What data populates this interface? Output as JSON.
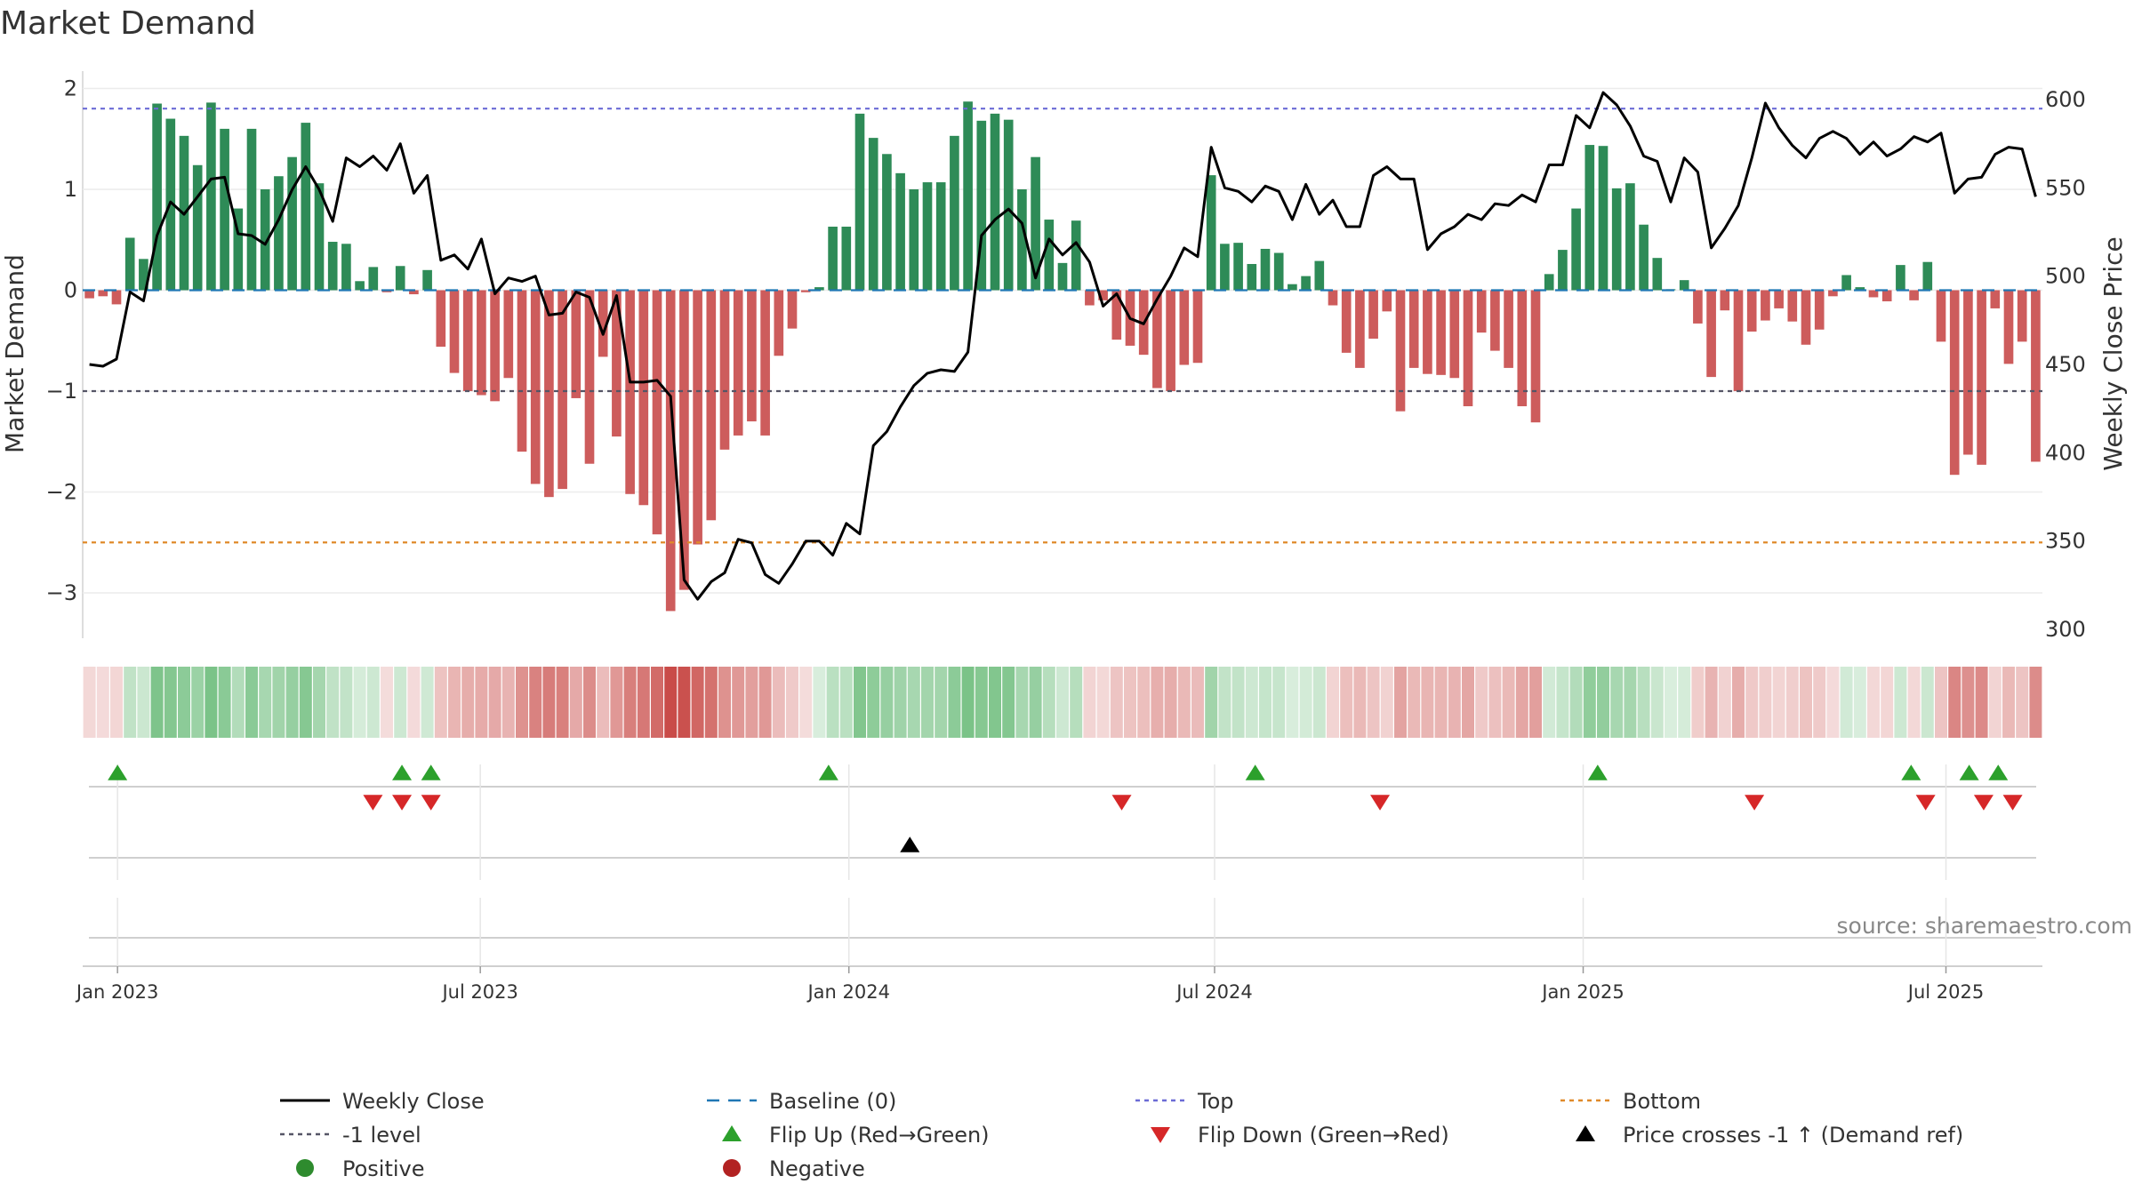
{
  "chart_data": {
    "type": "bar+line",
    "title": "Market Demand",
    "ylabel_left": "Market Demand",
    "ylabel_right": "Weekly Close Price",
    "ylim_left": [
      -3.5,
      2.05
    ],
    "ylim_right": [
      300,
      600
    ],
    "yticks_left": [
      "2",
      "1",
      "0",
      "−1",
      "−2",
      "−3"
    ],
    "ytick_values_left": [
      2,
      1,
      0,
      -1,
      -2,
      -3
    ],
    "yticks_right": [
      "600",
      "550",
      "500",
      "450",
      "400",
      "350",
      "300"
    ],
    "ytick_values_right": [
      600,
      550,
      500,
      450,
      400,
      350,
      300
    ],
    "xticks": [
      "Jan 2023",
      "Jul 2023",
      "Jan 2024",
      "Jul 2024",
      "Jan 2025",
      "Jul 2025"
    ],
    "xtick_week_index": [
      1.2,
      13.7,
      26.4,
      39.0,
      51.7,
      64.2
    ],
    "source_text": "source: sharemaestro.com",
    "reference_lines": [
      {
        "name": "Top",
        "value": 1.8,
        "color": "#6b6bd6"
      },
      {
        "name": "-1 level",
        "value": -1,
        "color": "#555566"
      },
      {
        "name": "Bottom",
        "value": -2.5,
        "color": "#e08a2a"
      },
      {
        "name": "Baseline (0)",
        "value": 0,
        "color": "#1f77b4"
      }
    ],
    "demand": [
      -0.08,
      -0.06,
      -0.14,
      0.52,
      0.31,
      1.85,
      1.7,
      1.53,
      1.24,
      1.86,
      1.6,
      0.81,
      1.6,
      1.0,
      1.13,
      1.32,
      1.66,
      1.06,
      0.48,
      0.46,
      0.09,
      0.23,
      -0.02,
      0.24,
      -0.04,
      0.2,
      -0.56,
      -0.82,
      -1.0,
      -1.04,
      -1.1,
      -0.87,
      -1.6,
      -1.92,
      -2.05,
      -1.97,
      -1.07,
      -1.72,
      -0.66,
      -1.45,
      -2.02,
      -2.13,
      -2.42,
      -3.18,
      -2.97,
      -2.52,
      -2.28,
      -1.58,
      -1.44,
      -1.3,
      -1.44,
      -0.65,
      -0.38,
      -0.02,
      0.03,
      0.63,
      0.63,
      1.75,
      1.51,
      1.35,
      1.16,
      1.0,
      1.07,
      1.07,
      1.53,
      1.87,
      1.68,
      1.75,
      1.69,
      1.0,
      1.32,
      0.7,
      0.27,
      0.69,
      -0.15,
      -0.1,
      -0.49,
      -0.55,
      -0.64,
      -0.97,
      -1.0,
      -0.74,
      -0.72,
      1.14,
      0.46,
      0.47,
      0.26,
      0.41,
      0.37,
      0.06,
      0.14,
      0.29,
      -0.15,
      -0.62,
      -0.77,
      -0.48,
      -0.21,
      -1.2,
      -0.77,
      -0.83,
      -0.84,
      -0.87,
      -1.15,
      -0.42,
      -0.6,
      -0.77,
      -1.15,
      -1.31,
      0.16,
      0.4,
      0.81,
      1.44,
      1.43,
      1.01,
      1.06,
      0.65,
      0.32,
      0.01,
      0.1,
      -0.33,
      -0.86,
      -0.2,
      -1.0,
      -0.41,
      -0.3,
      -0.18,
      -0.31,
      -0.54,
      -0.39,
      -0.06,
      0.15,
      0.03,
      -0.07,
      -0.11,
      0.25,
      -0.1,
      0.28,
      -0.51,
      -1.83,
      -1.63,
      -1.73,
      -0.18,
      -0.73,
      -0.51,
      -1.7
    ],
    "weekly_close": [
      450,
      449,
      453,
      491,
      486,
      523,
      542,
      535,
      545,
      555,
      556,
      524,
      523,
      518,
      532,
      549,
      562,
      549,
      531,
      567,
      562,
      568,
      560,
      575,
      547,
      557,
      509,
      512,
      504,
      521,
      490,
      499,
      497,
      500,
      478,
      479,
      491,
      488,
      467,
      489,
      440,
      440,
      441,
      432,
      328,
      317,
      327,
      332,
      351,
      349,
      331,
      326,
      337,
      350,
      350,
      342,
      360,
      354,
      404,
      412,
      426,
      438,
      445,
      447,
      446,
      457,
      523,
      532,
      538,
      530,
      499,
      521,
      512,
      519,
      508,
      483,
      490,
      476,
      473,
      487,
      500,
      516,
      511,
      573,
      550,
      548,
      542,
      551,
      548,
      532,
      552,
      535,
      543,
      528,
      528,
      557,
      562,
      555,
      555,
      515,
      524,
      528,
      535,
      532,
      541,
      540,
      546,
      542,
      563,
      563,
      591,
      584,
      604,
      597,
      585,
      568,
      565,
      542,
      567,
      559,
      516,
      527,
      540,
      567,
      598,
      584,
      574,
      567,
      578,
      582,
      578,
      569,
      576,
      568,
      572,
      579,
      576,
      581,
      547,
      555,
      556,
      569,
      573,
      572,
      545
    ],
    "flip_up_weeks": [
      1.2,
      11.0,
      12.0,
      25.7,
      40.4,
      52.2,
      63.0,
      65.0,
      66.0
    ],
    "flip_down_weeks": [
      10.0,
      11.0,
      12.0,
      35.8,
      44.7,
      57.6,
      63.5,
      65.5,
      66.5
    ],
    "price_cross_weeks": [
      28.5
    ],
    "legend": [
      {
        "label": "Weekly Close",
        "marker": "line",
        "color": "#000000"
      },
      {
        "label": "Baseline (0)",
        "marker": "dash",
        "color": "#1f77b4"
      },
      {
        "label": "Top",
        "marker": "dotted",
        "color": "#6b6bd6"
      },
      {
        "label": "Bottom",
        "marker": "dotted",
        "color": "#e08a2a"
      },
      {
        "label": "-1 level",
        "marker": "dotted",
        "color": "#555566"
      },
      {
        "label": "Flip Up (Red→Green)",
        "marker": "triangle-up",
        "color": "#2ca02c"
      },
      {
        "label": "Flip Down (Green→Red)",
        "marker": "triangle-down",
        "color": "#d62728"
      },
      {
        "label": "Price crosses -1 ↑ (Demand ref)",
        "marker": "triangle-up",
        "color": "#000000"
      },
      {
        "label": "Positive",
        "marker": "circle",
        "color": "#2e8b2e"
      },
      {
        "label": "Negative",
        "marker": "circle",
        "color": "#b22222"
      }
    ],
    "colors": {
      "positive_bar": "#2e8b57",
      "negative_bar": "#cd5c5c",
      "price_line": "#000000"
    }
  }
}
